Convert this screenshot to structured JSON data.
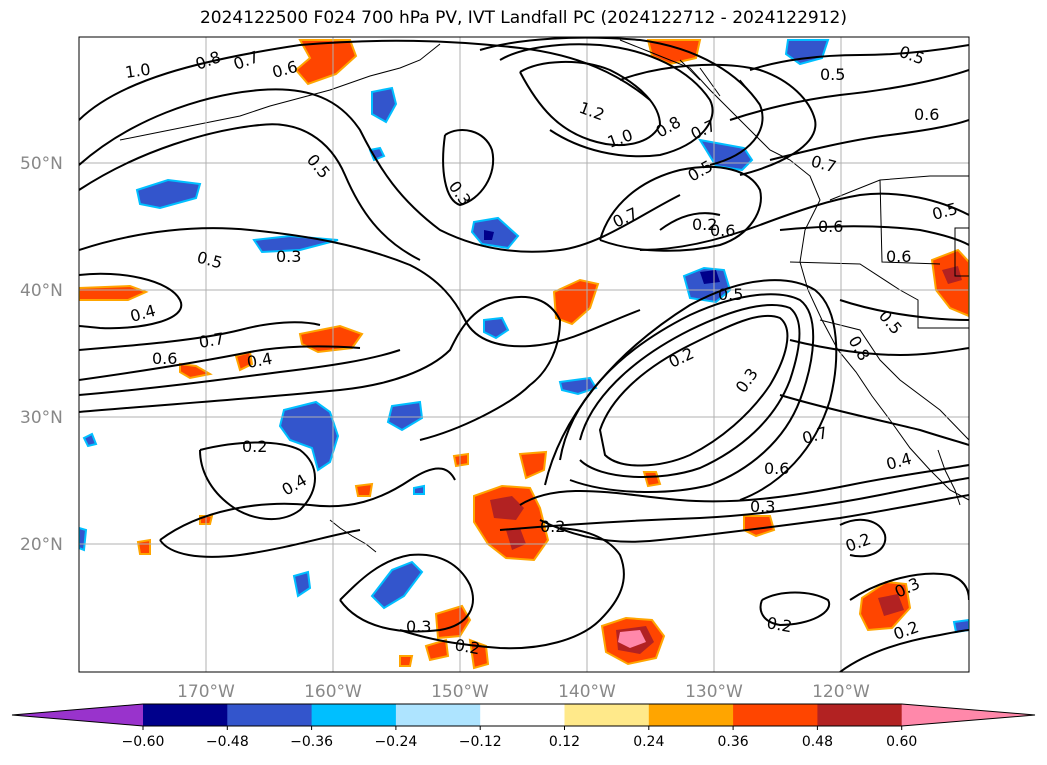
{
  "title": "2024122500 F024 700 hPa PV, IVT Landfall PC (2024122712 - 2024122912)",
  "lat_labels": [
    "50°N",
    "40°N",
    "30°N",
    "20°N"
  ],
  "lon_labels": [
    "170°W",
    "160°W",
    "150°W",
    "140°W",
    "130°W",
    "120°W"
  ],
  "contour_labels": [
    "1.0",
    "0.8",
    "0.7",
    "0.6",
    "0.5",
    "0.3",
    "1.2",
    "1.0",
    "0.8",
    "0.7",
    "0.5",
    "0.7",
    "0.6",
    "0.5",
    "0.7",
    "0.6",
    "0.6",
    "0.5",
    "0.5",
    "0.6",
    "0.4",
    "0.7",
    "0.6",
    "0.4",
    "0.2",
    "0.3",
    "0.5",
    "0.8",
    "0.5",
    "0.2",
    "0.4",
    "0.2",
    "0.7",
    "0.6",
    "0.4",
    "0.3",
    "0.2",
    "0.3",
    "0.2",
    "0.2",
    "0.3",
    "0.2",
    "0.3",
    "0.2",
    "0.5"
  ],
  "colorbar": {
    "colors": [
      "#9933cc",
      "#00008b",
      "#3355cc",
      "#00bfff",
      "#aee4ff",
      "#ffffff",
      "#ffe98a",
      "#ffa500",
      "#ff4500",
      "#b22222",
      "#ff88aa"
    ],
    "ticks": [
      "−0.60",
      "−0.48",
      "−0.36",
      "−0.24",
      "−0.12",
      "0.12",
      "0.24",
      "0.36",
      "0.48",
      "0.60"
    ]
  }
}
